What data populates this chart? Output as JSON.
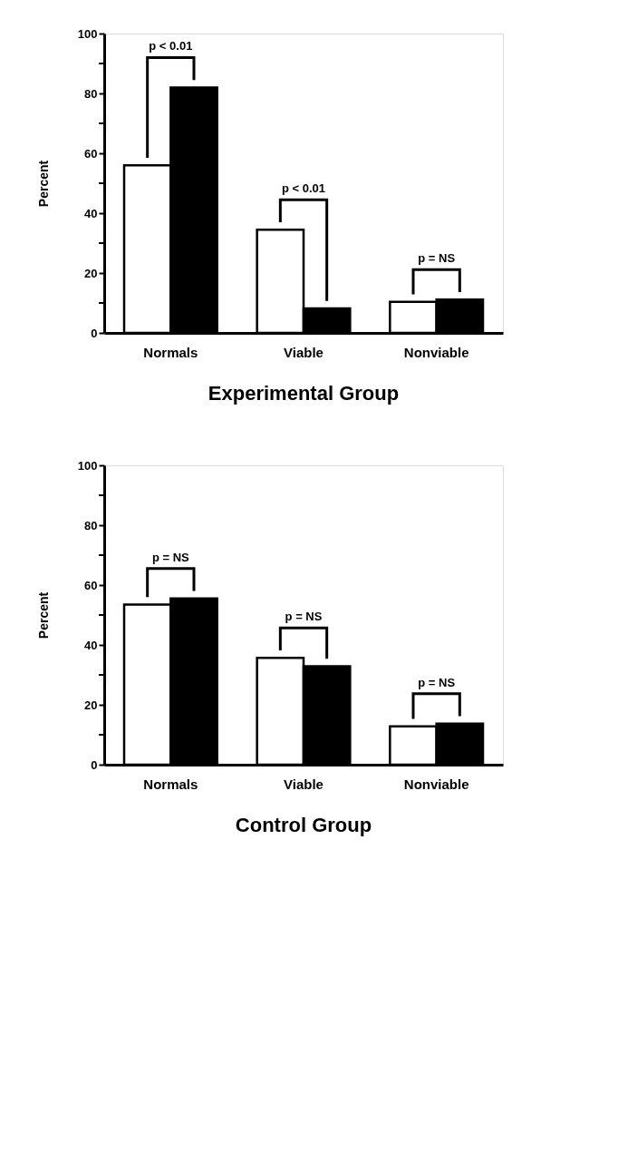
{
  "chart_data": [
    {
      "type": "bar",
      "title": "Experimental Group",
      "ylabel": "Percent",
      "categories": [
        "Normals",
        "Viable",
        "Nonviable"
      ],
      "series": [
        {
          "color": "#ffffff",
          "values": [
            56,
            34.5,
            10.4
          ]
        },
        {
          "color": "#000000",
          "values": [
            82,
            8.2,
            11.1
          ]
        }
      ],
      "ylim": [
        0,
        100
      ],
      "yticks": [
        0,
        {
          "value": 10,
          "label": null
        },
        20,
        {
          "value": 30,
          "label": null
        },
        40,
        {
          "value": 50,
          "label": null
        },
        60,
        {
          "value": 70,
          "label": null
        },
        80,
        {
          "value": 90,
          "label": null
        },
        100
      ],
      "annotations": [
        "p < 0.01",
        "p < 0.01",
        "p = NS"
      ],
      "grid": false
    },
    {
      "type": "bar",
      "title": "Control Group",
      "ylabel": "Percent",
      "categories": [
        "Normals",
        "Viable",
        "Nonviable"
      ],
      "series": [
        {
          "color": "#ffffff",
          "values": [
            53.5,
            35.7,
            12.8
          ]
        },
        {
          "color": "#000000",
          "values": [
            55.5,
            32.9,
            13.7
          ]
        }
      ],
      "ylim": [
        0,
        100
      ],
      "yticks": [
        0,
        {
          "value": 10,
          "label": null
        },
        20,
        {
          "value": 30,
          "label": null
        },
        40,
        {
          "value": 50,
          "label": null
        },
        60,
        {
          "value": 70,
          "label": null
        },
        80,
        {
          "value": 90,
          "label": null
        },
        100
      ],
      "annotations": [
        "p = NS",
        "p = NS",
        "p = NS"
      ],
      "grid": false
    }
  ]
}
